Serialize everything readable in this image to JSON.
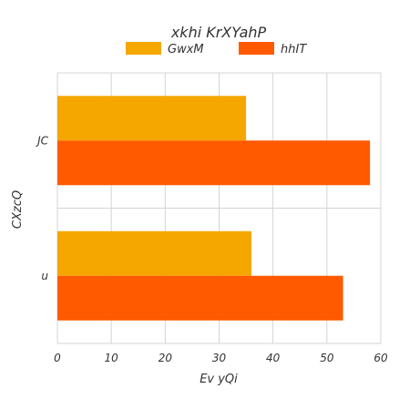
{
  "chart_data": {
    "type": "bar",
    "orientation": "horizontal",
    "title": "xkhi KrXYahP",
    "xlabel": "Ev  yQi",
    "ylabel": "CXzcQ",
    "categories": [
      "JC",
      "u"
    ],
    "series": [
      {
        "name": "GwxM",
        "color": "#f5a700",
        "values": [
          35,
          36
        ]
      },
      {
        "name": "hhIT",
        "color": "#ff5a00",
        "values": [
          58,
          53
        ]
      }
    ],
    "xlim": [
      0,
      60
    ],
    "xticks": [
      0,
      10,
      20,
      30,
      40,
      50,
      60
    ],
    "grid": true,
    "legend_position": "top-center"
  }
}
